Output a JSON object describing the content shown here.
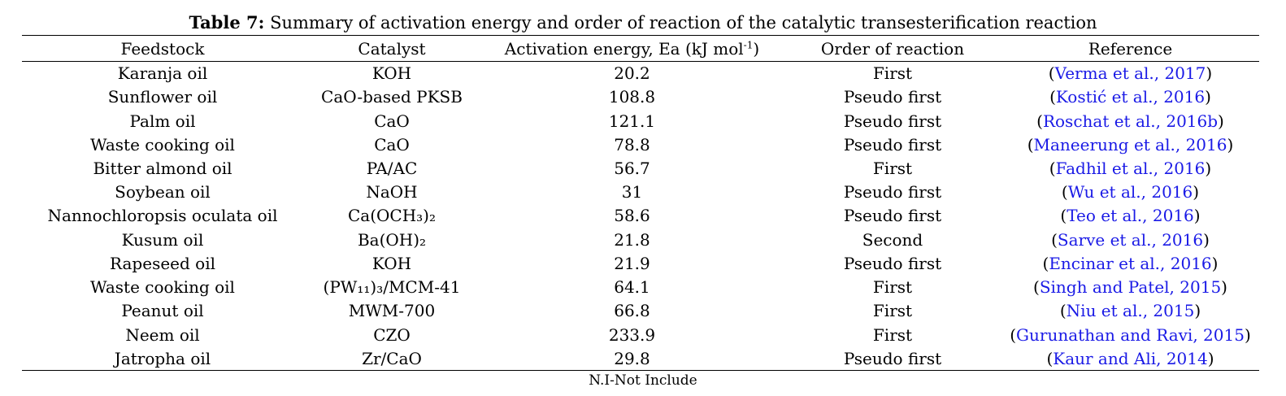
{
  "caption": {
    "label": "Table 7:",
    "text": "Summary of activation energy and order of reaction of the catalytic transesterification reaction"
  },
  "headers": {
    "feedstock": "Feedstock",
    "catalyst": "Catalyst",
    "activation_energy_prefix": "Activation energy, Ea (kJ mol",
    "activation_energy_sup": "-1",
    "activation_energy_suffix": ")",
    "order": "Order of reaction",
    "reference": "Reference"
  },
  "rows": [
    {
      "feedstock": "Karanja oil",
      "catalyst": "KOH",
      "ea": "20.2",
      "order": "First",
      "reference": "Verma et al., 2017"
    },
    {
      "feedstock": "Sunflower oil",
      "catalyst": "CaO-based PKSB",
      "ea": "108.8",
      "order": "Pseudo first",
      "reference": "Kostić et al., 2016"
    },
    {
      "feedstock": "Palm oil",
      "catalyst": "CaO",
      "ea": "121.1",
      "order": "Pseudo first",
      "reference": "Roschat et al., 2016b"
    },
    {
      "feedstock": "Waste cooking oil",
      "catalyst": "CaO",
      "ea": "78.8",
      "order": "Pseudo first",
      "reference": "Maneerung et al., 2016"
    },
    {
      "feedstock": "Bitter almond oil",
      "catalyst": "PA/AC",
      "ea": "56.7",
      "order": "First",
      "reference": "Fadhil et al., 2016"
    },
    {
      "feedstock": "Soybean oil",
      "catalyst": "NaOH",
      "ea": "31",
      "order": "Pseudo first",
      "reference": "Wu et al., 2016"
    },
    {
      "feedstock": "Nannochloropsis oculata oil",
      "catalyst": "Ca(OCH₃)₂",
      "ea": "58.6",
      "order": "Pseudo first",
      "reference": "Teo et al., 2016"
    },
    {
      "feedstock": "Kusum oil",
      "catalyst": "Ba(OH)₂",
      "ea": "21.8",
      "order": "Second",
      "reference": "Sarve et al., 2016"
    },
    {
      "feedstock": "Rapeseed oil",
      "catalyst": "KOH",
      "ea": "21.9",
      "order": "Pseudo first",
      "reference": "Encinar et al., 2016"
    },
    {
      "feedstock": "Waste cooking oil",
      "catalyst": "(PW₁₁)₃/MCM-41",
      "ea": "64.1",
      "order": "First",
      "reference": "Singh and Patel, 2015"
    },
    {
      "feedstock": "Peanut oil",
      "catalyst": "MWM-700",
      "ea": "66.8",
      "order": "First",
      "reference": "Niu et al., 2015"
    },
    {
      "feedstock": "Neem oil",
      "catalyst": "CZO",
      "ea": "233.9",
      "order": "First",
      "reference": "Gurunathan and Ravi, 2015"
    },
    {
      "feedstock": "Jatropha oil",
      "catalyst": "Zr/CaO",
      "ea": "29.8",
      "order": "Pseudo first",
      "reference": "Kaur and Ali, 2014"
    }
  ],
  "footnote": "N.I-Not Include",
  "colors": {
    "reference_link": "#1a1ae6",
    "text": "#000000"
  }
}
